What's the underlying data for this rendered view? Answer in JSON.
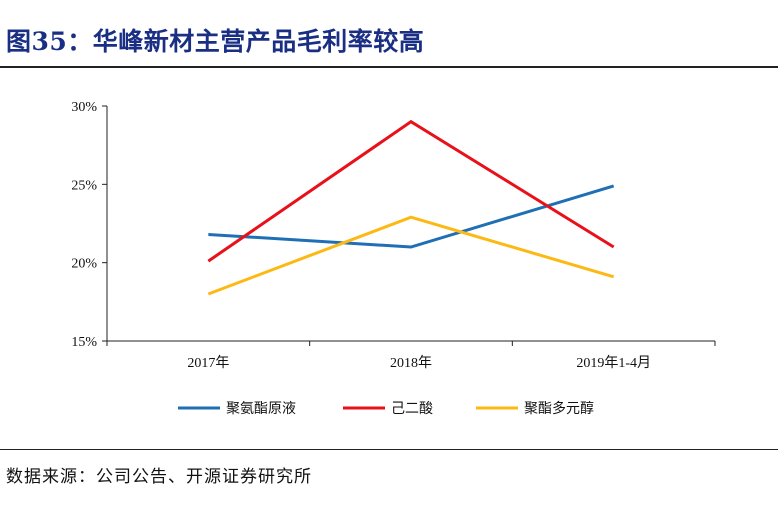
{
  "figure": {
    "title": "图35：华峰新材主营产品毛利率较高",
    "source": "数据来源：公司公告、开源证券研究所"
  },
  "chart_data": {
    "type": "line",
    "categories": [
      "2017年",
      "2018年",
      "2019年1-4月"
    ],
    "series": [
      {
        "name": "聚氨酯原液",
        "color": "#1f6fb5",
        "values": [
          21.8,
          21.0,
          24.9
        ]
      },
      {
        "name": "己二酸",
        "color": "#e8111a",
        "values": [
          20.1,
          29.0,
          21.0
        ]
      },
      {
        "name": "聚酯多元醇",
        "color": "#fdb913",
        "values": [
          18.0,
          22.9,
          19.1
        ]
      }
    ],
    "ylim": [
      15,
      30
    ],
    "yticks": [
      "15%",
      "20%",
      "25%",
      "30%"
    ],
    "ytick_values": [
      15,
      20,
      25,
      30
    ],
    "legend_position": "bottom",
    "grid": false
  }
}
